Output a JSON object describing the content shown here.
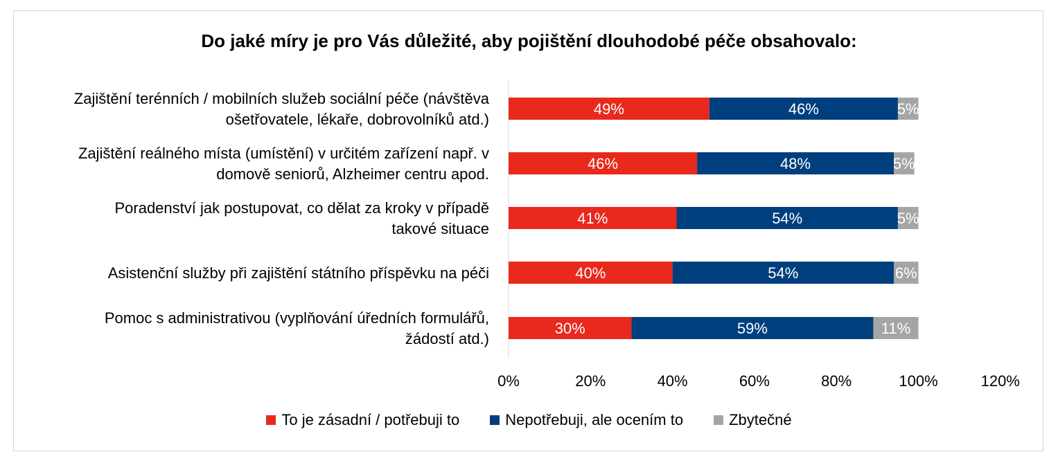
{
  "chart_data": {
    "type": "bar",
    "orientation": "horizontal",
    "stacked": true,
    "title": "Do jaké míry je pro Vás důležité, aby pojištění dlouhodobé péče obsahovalo:",
    "categories": [
      [
        "Zajištění terénních / mobilních služeb sociální péče (návštěva",
        "ošetřovatele, lékaře, dobrovolníků atd.)"
      ],
      [
        "Zajištění reálného místa (umístění) v určitém zařízení např. v",
        "domově seniorů, Alzheimer centru apod."
      ],
      [
        "Poradenství  jak postupovat, co dělat za kroky v případě",
        "takové situace"
      ],
      [
        "Asistenční služby při zajištění státního příspěvku na péči"
      ],
      [
        "Pomoc s administrativou (vyplňování úředních formulářů,",
        "žádostí atd.)"
      ]
    ],
    "series": [
      {
        "name": "To je zásadní / potřebuji to",
        "color": "#e8291c",
        "values": [
          49,
          46,
          41,
          40,
          30
        ],
        "labels": [
          "49%",
          "46%",
          "41%",
          "40%",
          "30%"
        ]
      },
      {
        "name": "Nepotřebuji, ale ocením to",
        "color": "#003f7d",
        "values": [
          46,
          48,
          54,
          54,
          59
        ],
        "labels": [
          "46%",
          "48%",
          "54%",
          "54%",
          "59%"
        ]
      },
      {
        "name": "Zbytečné",
        "color": "#a5a5a5",
        "values": [
          5,
          5,
          5,
          6,
          11
        ],
        "labels": [
          "5%",
          "5%",
          "5%",
          "6%",
          "11%"
        ]
      }
    ],
    "xlim": [
      0,
      120
    ],
    "xticks": [
      0,
      20,
      40,
      60,
      80,
      100,
      120
    ],
    "xtick_labels": [
      "0%",
      "20%",
      "40%",
      "60%",
      "80%",
      "100%",
      "120%"
    ],
    "legend_position": "bottom",
    "grid": false
  }
}
